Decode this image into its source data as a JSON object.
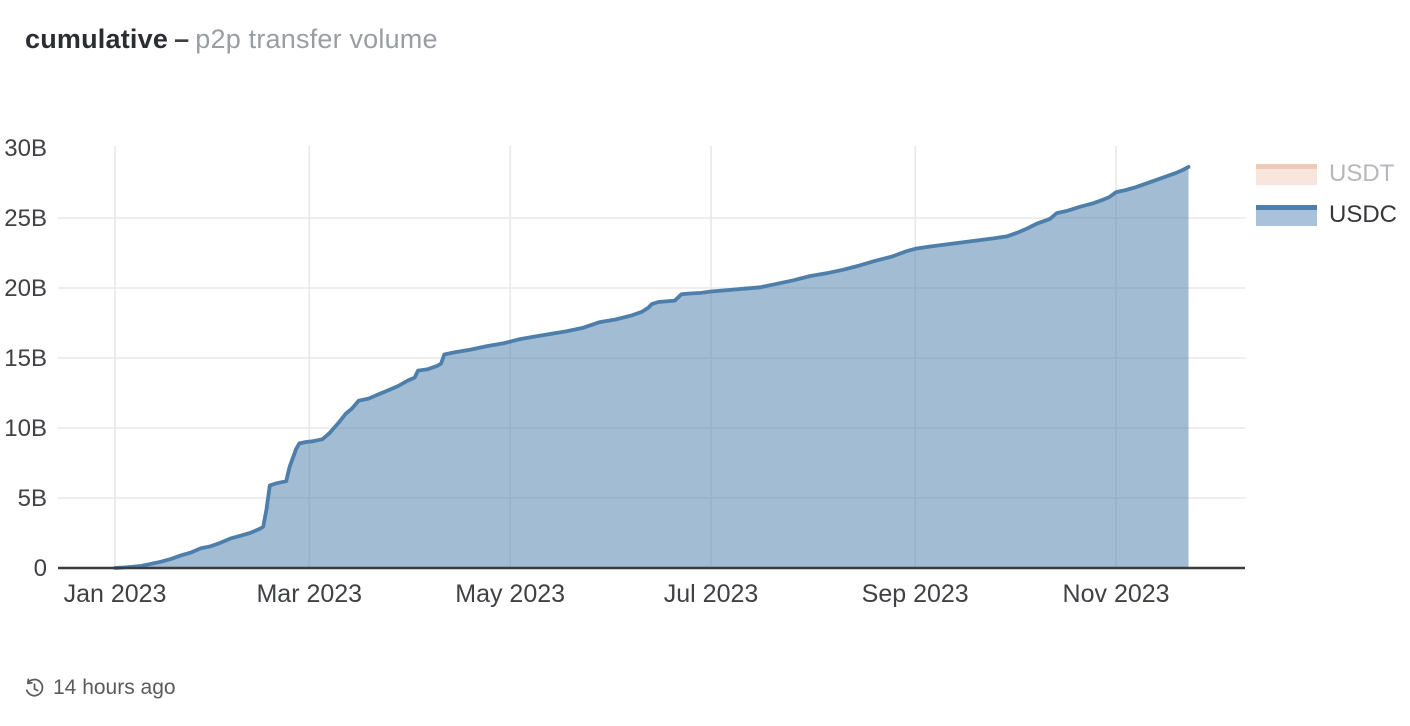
{
  "header": {
    "title": "cumulative",
    "separator": "–",
    "subtitle": "p2p transfer volume"
  },
  "legend": [
    {
      "label": "USDT",
      "line_color": "#eecab8",
      "fill_color": "#f8e5db",
      "text_color": "#b5b7ba",
      "active": false
    },
    {
      "label": "USDC",
      "line_color": "#4e7fab",
      "fill_color": "#a9c2da",
      "text_color": "#35373a",
      "active": true
    }
  ],
  "footer": {
    "icon": "history-icon",
    "updated": "14 hours ago"
  },
  "colors": {
    "grid": "#e8e8e8",
    "zero_axis": "#3a3c3e",
    "tick_text": "#3f4144",
    "usdc_line": "#4e7fab",
    "usdc_fill": "#5585b0",
    "background": "#ffffff"
  },
  "chart_data": {
    "type": "area",
    "title": "cumulative – p2p transfer volume",
    "xlabel": "",
    "ylabel": "",
    "unit": "B (billions USD)",
    "x_unit": "days since 2023-01-01",
    "ylim": [
      0,
      30
    ],
    "grid": true,
    "legend_position": "right",
    "x_ticks": [
      {
        "day": 0,
        "label": "Jan 2023"
      },
      {
        "day": 59,
        "label": "Mar 2023"
      },
      {
        "day": 120,
        "label": "May 2023"
      },
      {
        "day": 181,
        "label": "Jul 2023"
      },
      {
        "day": 243,
        "label": "Sep 2023"
      },
      {
        "day": 304,
        "label": "Nov 2023"
      }
    ],
    "y_ticks": [
      {
        "value": 0,
        "label": "0",
        "grid": false
      },
      {
        "value": 5,
        "label": "5B",
        "grid": true
      },
      {
        "value": 10,
        "label": "10B",
        "grid": true
      },
      {
        "value": 15,
        "label": "15B",
        "grid": true
      },
      {
        "value": 20,
        "label": "20B",
        "grid": true
      },
      {
        "value": 25,
        "label": "25B",
        "grid": true
      },
      {
        "value": 30,
        "label": "30B",
        "grid": false
      }
    ],
    "series": [
      {
        "name": "USDT",
        "visible": false,
        "points": []
      },
      {
        "name": "USDC",
        "visible": true,
        "points": [
          [
            0,
            0
          ],
          [
            2,
            0.03
          ],
          [
            5,
            0.08
          ],
          [
            8,
            0.15
          ],
          [
            11,
            0.3
          ],
          [
            14,
            0.45
          ],
          [
            17,
            0.65
          ],
          [
            20,
            0.9
          ],
          [
            23,
            1.1
          ],
          [
            26,
            1.4
          ],
          [
            29,
            1.55
          ],
          [
            32,
            1.8
          ],
          [
            35,
            2.1
          ],
          [
            38,
            2.3
          ],
          [
            41,
            2.5
          ],
          [
            44,
            2.8
          ],
          [
            45,
            2.95
          ],
          [
            46,
            4.2
          ],
          [
            47,
            5.9
          ],
          [
            49,
            6.05
          ],
          [
            52,
            6.2
          ],
          [
            53,
            7.2
          ],
          [
            55,
            8.5
          ],
          [
            56,
            8.9
          ],
          [
            58,
            9.0
          ],
          [
            60,
            9.05
          ],
          [
            63,
            9.2
          ],
          [
            65,
            9.6
          ],
          [
            68,
            10.4
          ],
          [
            70,
            11.0
          ],
          [
            72,
            11.4
          ],
          [
            74,
            11.95
          ],
          [
            77,
            12.1
          ],
          [
            80,
            12.4
          ],
          [
            83,
            12.7
          ],
          [
            86,
            13.0
          ],
          [
            89,
            13.4
          ],
          [
            91,
            13.6
          ],
          [
            92,
            14.1
          ],
          [
            95,
            14.2
          ],
          [
            98,
            14.45
          ],
          [
            99,
            14.6
          ],
          [
            100,
            15.25
          ],
          [
            103,
            15.4
          ],
          [
            108,
            15.6
          ],
          [
            113,
            15.85
          ],
          [
            118,
            16.05
          ],
          [
            123,
            16.35
          ],
          [
            128,
            16.55
          ],
          [
            133,
            16.75
          ],
          [
            137,
            16.9
          ],
          [
            142,
            17.15
          ],
          [
            147,
            17.55
          ],
          [
            152,
            17.75
          ],
          [
            157,
            18.05
          ],
          [
            160,
            18.3
          ],
          [
            162,
            18.6
          ],
          [
            163,
            18.85
          ],
          [
            165,
            19.0
          ],
          [
            170,
            19.1
          ],
          [
            172,
            19.55
          ],
          [
            174,
            19.6
          ],
          [
            178,
            19.65
          ],
          [
            181,
            19.75
          ],
          [
            186,
            19.85
          ],
          [
            191,
            19.95
          ],
          [
            196,
            20.05
          ],
          [
            201,
            20.3
          ],
          [
            206,
            20.55
          ],
          [
            211,
            20.85
          ],
          [
            216,
            21.05
          ],
          [
            221,
            21.3
          ],
          [
            226,
            21.6
          ],
          [
            231,
            21.95
          ],
          [
            236,
            22.25
          ],
          [
            240,
            22.6
          ],
          [
            243,
            22.8
          ],
          [
            247,
            22.95
          ],
          [
            252,
            23.1
          ],
          [
            257,
            23.25
          ],
          [
            262,
            23.4
          ],
          [
            267,
            23.55
          ],
          [
            271,
            23.7
          ],
          [
            274,
            23.95
          ],
          [
            277,
            24.25
          ],
          [
            280,
            24.6
          ],
          [
            283,
            24.85
          ],
          [
            284,
            24.95
          ],
          [
            286,
            25.35
          ],
          [
            289,
            25.5
          ],
          [
            293,
            25.8
          ],
          [
            297,
            26.05
          ],
          [
            300,
            26.3
          ],
          [
            302,
            26.5
          ],
          [
            304,
            26.85
          ],
          [
            307,
            27.0
          ],
          [
            310,
            27.2
          ],
          [
            313,
            27.45
          ],
          [
            316,
            27.7
          ],
          [
            319,
            27.95
          ],
          [
            322,
            28.2
          ],
          [
            324,
            28.4
          ],
          [
            326,
            28.65
          ]
        ]
      }
    ]
  }
}
